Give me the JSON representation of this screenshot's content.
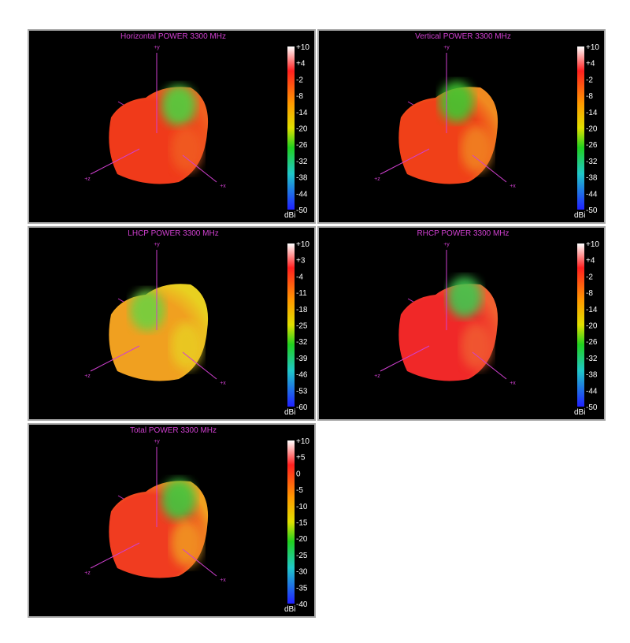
{
  "panels": [
    {
      "title": "Horizontal POWER 3300 MHz",
      "axes": {
        "y": "+y",
        "x": "+x",
        "z": "+z"
      },
      "colorbar": {
        "ticks": [
          "+10",
          "+4",
          "-2",
          "-8",
          "-14",
          "-20",
          "-26",
          "-32",
          "-38",
          "-44",
          "-50"
        ],
        "unit": "dBi"
      }
    },
    {
      "title": "Vertical POWER 3300 MHz",
      "axes": {
        "y": "+y",
        "x": "+x",
        "z": "+z"
      },
      "colorbar": {
        "ticks": [
          "+10",
          "+4",
          "-2",
          "-8",
          "-14",
          "-20",
          "-26",
          "-32",
          "-38",
          "-44",
          "-50"
        ],
        "unit": "dBi"
      }
    },
    {
      "title": "LHCP POWER 3300 MHz",
      "axes": {
        "y": "+y",
        "x": "+x",
        "z": "+z"
      },
      "colorbar": {
        "ticks": [
          "+10",
          "+3",
          "-4",
          "-11",
          "-18",
          "-25",
          "-32",
          "-39",
          "-46",
          "-53",
          "-60"
        ],
        "unit": "dBi"
      }
    },
    {
      "title": "RHCP POWER 3300 MHz",
      "axes": {
        "y": "+y",
        "x": "+x",
        "z": "+z"
      },
      "colorbar": {
        "ticks": [
          "+10",
          "+4",
          "-2",
          "-8",
          "-14",
          "-20",
          "-26",
          "-32",
          "-38",
          "-44",
          "-50"
        ],
        "unit": "dBi"
      }
    },
    {
      "title": "Total POWER 3300 MHz",
      "axes": {
        "y": "+y",
        "x": "+x",
        "z": "+z"
      },
      "colorbar": {
        "ticks": [
          "+10",
          "+5",
          "0",
          "-5",
          "-10",
          "-15",
          "-20",
          "-25",
          "-30",
          "-35",
          "-40"
        ],
        "unit": "dBi"
      }
    }
  ]
}
